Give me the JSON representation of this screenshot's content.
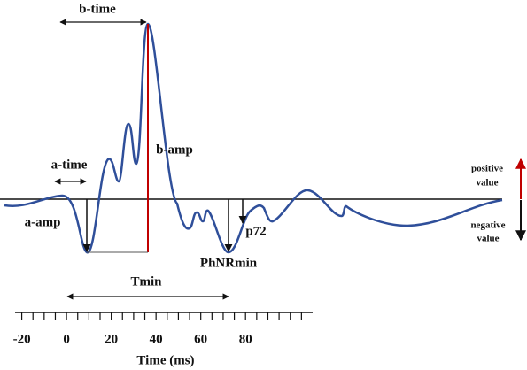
{
  "labels": {
    "b_time": "b-time",
    "a_time": "a-time",
    "a_amp": "a-amp",
    "b_amp": "b-amp",
    "p72": "p72",
    "phnr": "PhNRmin",
    "tmin": "Tmin",
    "positive": [
      "positive",
      "value"
    ],
    "negative": [
      "negative",
      "value"
    ]
  },
  "axis": {
    "label": "Time (ms)",
    "xlim": [
      -23,
      110
    ],
    "xticks": [
      -20,
      0,
      20,
      40,
      60,
      80
    ],
    "minor_ticks": [
      -20,
      -15,
      -10,
      -5,
      0,
      5,
      10,
      15,
      20,
      25,
      30,
      35,
      40,
      45,
      50,
      55,
      60,
      65,
      70,
      75,
      80,
      85,
      90,
      95,
      100,
      105
    ]
  }
}
